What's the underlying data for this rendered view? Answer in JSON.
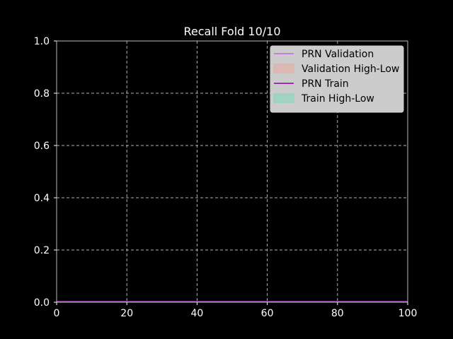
{
  "chart_data": {
    "type": "line",
    "title": "Recall Fold 10/10",
    "xlabel": "",
    "ylabel": "",
    "xlim": [
      0,
      100
    ],
    "ylim": [
      0,
      1
    ],
    "x_ticks": [
      0,
      20,
      40,
      60,
      80,
      100
    ],
    "x_tick_labels": [
      "0",
      "20",
      "40",
      "60",
      "80",
      "100"
    ],
    "y_ticks": [
      0,
      0.2,
      0.4,
      0.6,
      0.8,
      1.0
    ],
    "y_tick_labels": [
      "0.0",
      "0.2",
      "0.4",
      "0.6",
      "0.8",
      "1.0"
    ],
    "grid": true,
    "legend_position": "top-right",
    "background_color": "#000000",
    "series": [
      {
        "name": "PRN Validation",
        "kind": "line",
        "color": "#c77dd8",
        "x": [
          0,
          100
        ],
        "y": [
          0.0,
          0.0
        ]
      },
      {
        "name": "Validation High-Low",
        "kind": "band",
        "color": "#e8a9a0",
        "x": [
          0,
          100
        ],
        "y_low": [
          0.0,
          0.0
        ],
        "y_high": [
          0.0,
          0.0
        ]
      },
      {
        "name": "PRN Train",
        "kind": "line",
        "color": "#9b30b0",
        "x": [
          0,
          100
        ],
        "y": [
          0.0,
          0.0
        ]
      },
      {
        "name": "Train High-Low",
        "kind": "band",
        "color": "#7fd8b8",
        "x": [
          0,
          100
        ],
        "y_low": [
          0.0,
          0.0
        ],
        "y_high": [
          0.0,
          0.0
        ]
      }
    ]
  }
}
